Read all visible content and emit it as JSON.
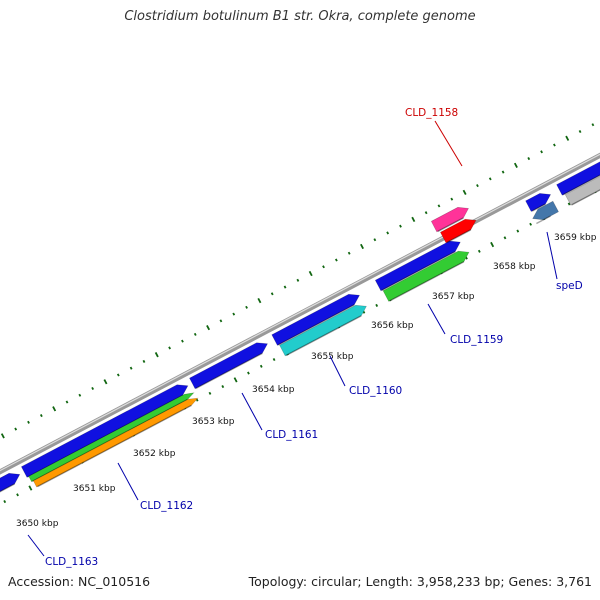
{
  "title": "Clostridium botulinum B1 str. Okra, complete genome",
  "accession": "Accession: NC_010516",
  "summary": "Topology: circular; Length: 3,958,233 bp; Genes: 3,761",
  "ticks": [
    "3650 kbp",
    "3651 kbp",
    "3652 kbp",
    "3653 kbp",
    "3654 kbp",
    "3655 kbp",
    "3656 kbp",
    "3657 kbp",
    "3658 kbp",
    "3659 kbp"
  ],
  "gene_labels": [
    {
      "name": "CLD_1158",
      "color": "#cc0000"
    },
    {
      "name": "CLD_1159",
      "color": "#0000aa"
    },
    {
      "name": "CLD_1160",
      "color": "#0000aa"
    },
    {
      "name": "CLD_1161",
      "color": "#0000aa"
    },
    {
      "name": "CLD_1162",
      "color": "#0000aa"
    },
    {
      "name": "CLD_1163",
      "color": "#0000aa"
    },
    {
      "name": "speD",
      "color": "#0000aa"
    }
  ],
  "colors": {
    "backbone": "#999999",
    "gene_blue": "#1010e0",
    "gene_green": "#33cc33",
    "gene_orange": "#ff9900",
    "gene_cyan": "#22cccc",
    "gene_pink": "#ff3399",
    "gene_red": "#ff0000",
    "gene_steelblue": "#4477aa",
    "gene_gray": "#bbbbbb",
    "tick": "#116611"
  }
}
